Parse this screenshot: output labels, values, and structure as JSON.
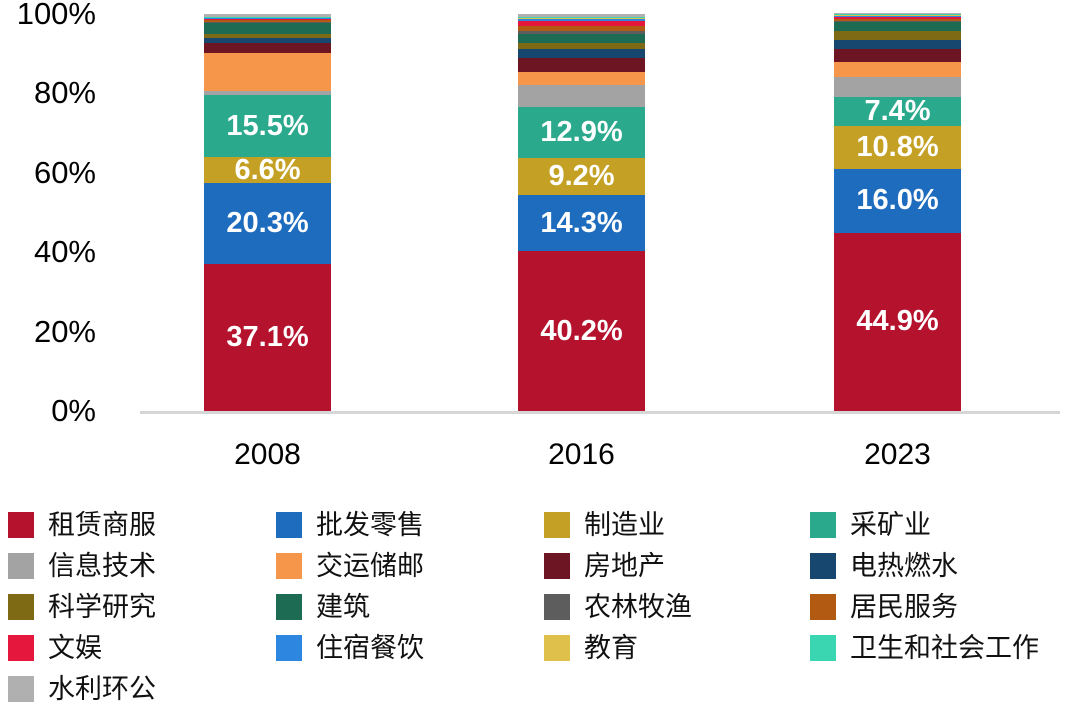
{
  "chart_data": {
    "type": "bar",
    "subtype": "stacked-100-percent",
    "title": "",
    "categories": [
      "2008",
      "2016",
      "2023"
    ],
    "series": [
      {
        "name": "租赁商服",
        "color": "#B5122D",
        "values": [
          37.1,
          40.2,
          44.9
        ],
        "labels": [
          "37.1%",
          "40.2%",
          "44.9%"
        ]
      },
      {
        "name": "批发零售",
        "color": "#1E6CBE",
        "values": [
          20.3,
          14.3,
          16.0
        ],
        "labels": [
          "20.3%",
          "14.3%",
          "16.0%"
        ]
      },
      {
        "name": "制造业",
        "color": "#C4A125",
        "values": [
          6.6,
          9.2,
          10.8
        ],
        "labels": [
          "6.6%",
          "9.2%",
          "10.8%"
        ]
      },
      {
        "name": "采矿业",
        "color": "#2BA98C",
        "values": [
          15.5,
          12.9,
          7.4
        ],
        "labels": [
          "15.5%",
          "12.9%",
          "7.4%"
        ]
      },
      {
        "name": "信息技术",
        "color": "#A3A3A3",
        "values": [
          1.0,
          5.6,
          5.0
        ]
      },
      {
        "name": "交运储邮",
        "color": "#F6964B",
        "values": [
          9.6,
          3.3,
          3.7
        ]
      },
      {
        "name": "房地产",
        "color": "#6E1523",
        "values": [
          2.5,
          3.5,
          3.3
        ]
      },
      {
        "name": "电热燃水",
        "color": "#17466F",
        "values": [
          1.3,
          2.2,
          2.4
        ]
      },
      {
        "name": "科学研究",
        "color": "#7E6A14",
        "values": [
          1.0,
          1.5,
          2.2
        ]
      },
      {
        "name": "建筑",
        "color": "#1E6B54",
        "values": [
          2.8,
          2.3,
          2.2
        ]
      },
      {
        "name": "农林牧渔",
        "color": "#5D5D5D",
        "values": [
          0.3,
          0.7,
          0.4
        ]
      },
      {
        "name": "居民服务",
        "color": "#B35A12",
        "values": [
          0.4,
          1.3,
          0.4
        ]
      },
      {
        "name": "文娱",
        "color": "#E5173C",
        "values": [
          0.3,
          1.2,
          0.6
        ]
      },
      {
        "name": "住宿餐饮",
        "color": "#2D87E0",
        "values": [
          0.2,
          0.6,
          0.3
        ]
      },
      {
        "name": "教育",
        "color": "#DFC04B",
        "values": [
          0.2,
          0.3,
          0.3
        ]
      },
      {
        "name": "卫生和社会工作",
        "color": "#3AD5B1",
        "values": [
          0.2,
          0.3,
          0.2
        ]
      },
      {
        "name": "水利环公",
        "color": "#B0B0B0",
        "values": [
          0.7,
          0.6,
          0.2
        ]
      }
    ],
    "y_axis": {
      "min": 0,
      "max": 100,
      "ticks": [
        {
          "label": "100%",
          "value": 100
        },
        {
          "label": "80%",
          "value": 80
        },
        {
          "label": "60%",
          "value": 60
        },
        {
          "label": "40%",
          "value": 40
        },
        {
          "label": "20%",
          "value": 20
        },
        {
          "label": "0%",
          "value": 0
        }
      ]
    },
    "x_axis": {
      "labels": [
        "2008",
        "2016",
        "2023"
      ]
    },
    "legend_position": "bottom",
    "grid": false
  },
  "layout_colors": {
    "axis_line": "#D6D6D6",
    "background": "#FFFFFF",
    "bar_value_text": "#FFFFFF"
  }
}
